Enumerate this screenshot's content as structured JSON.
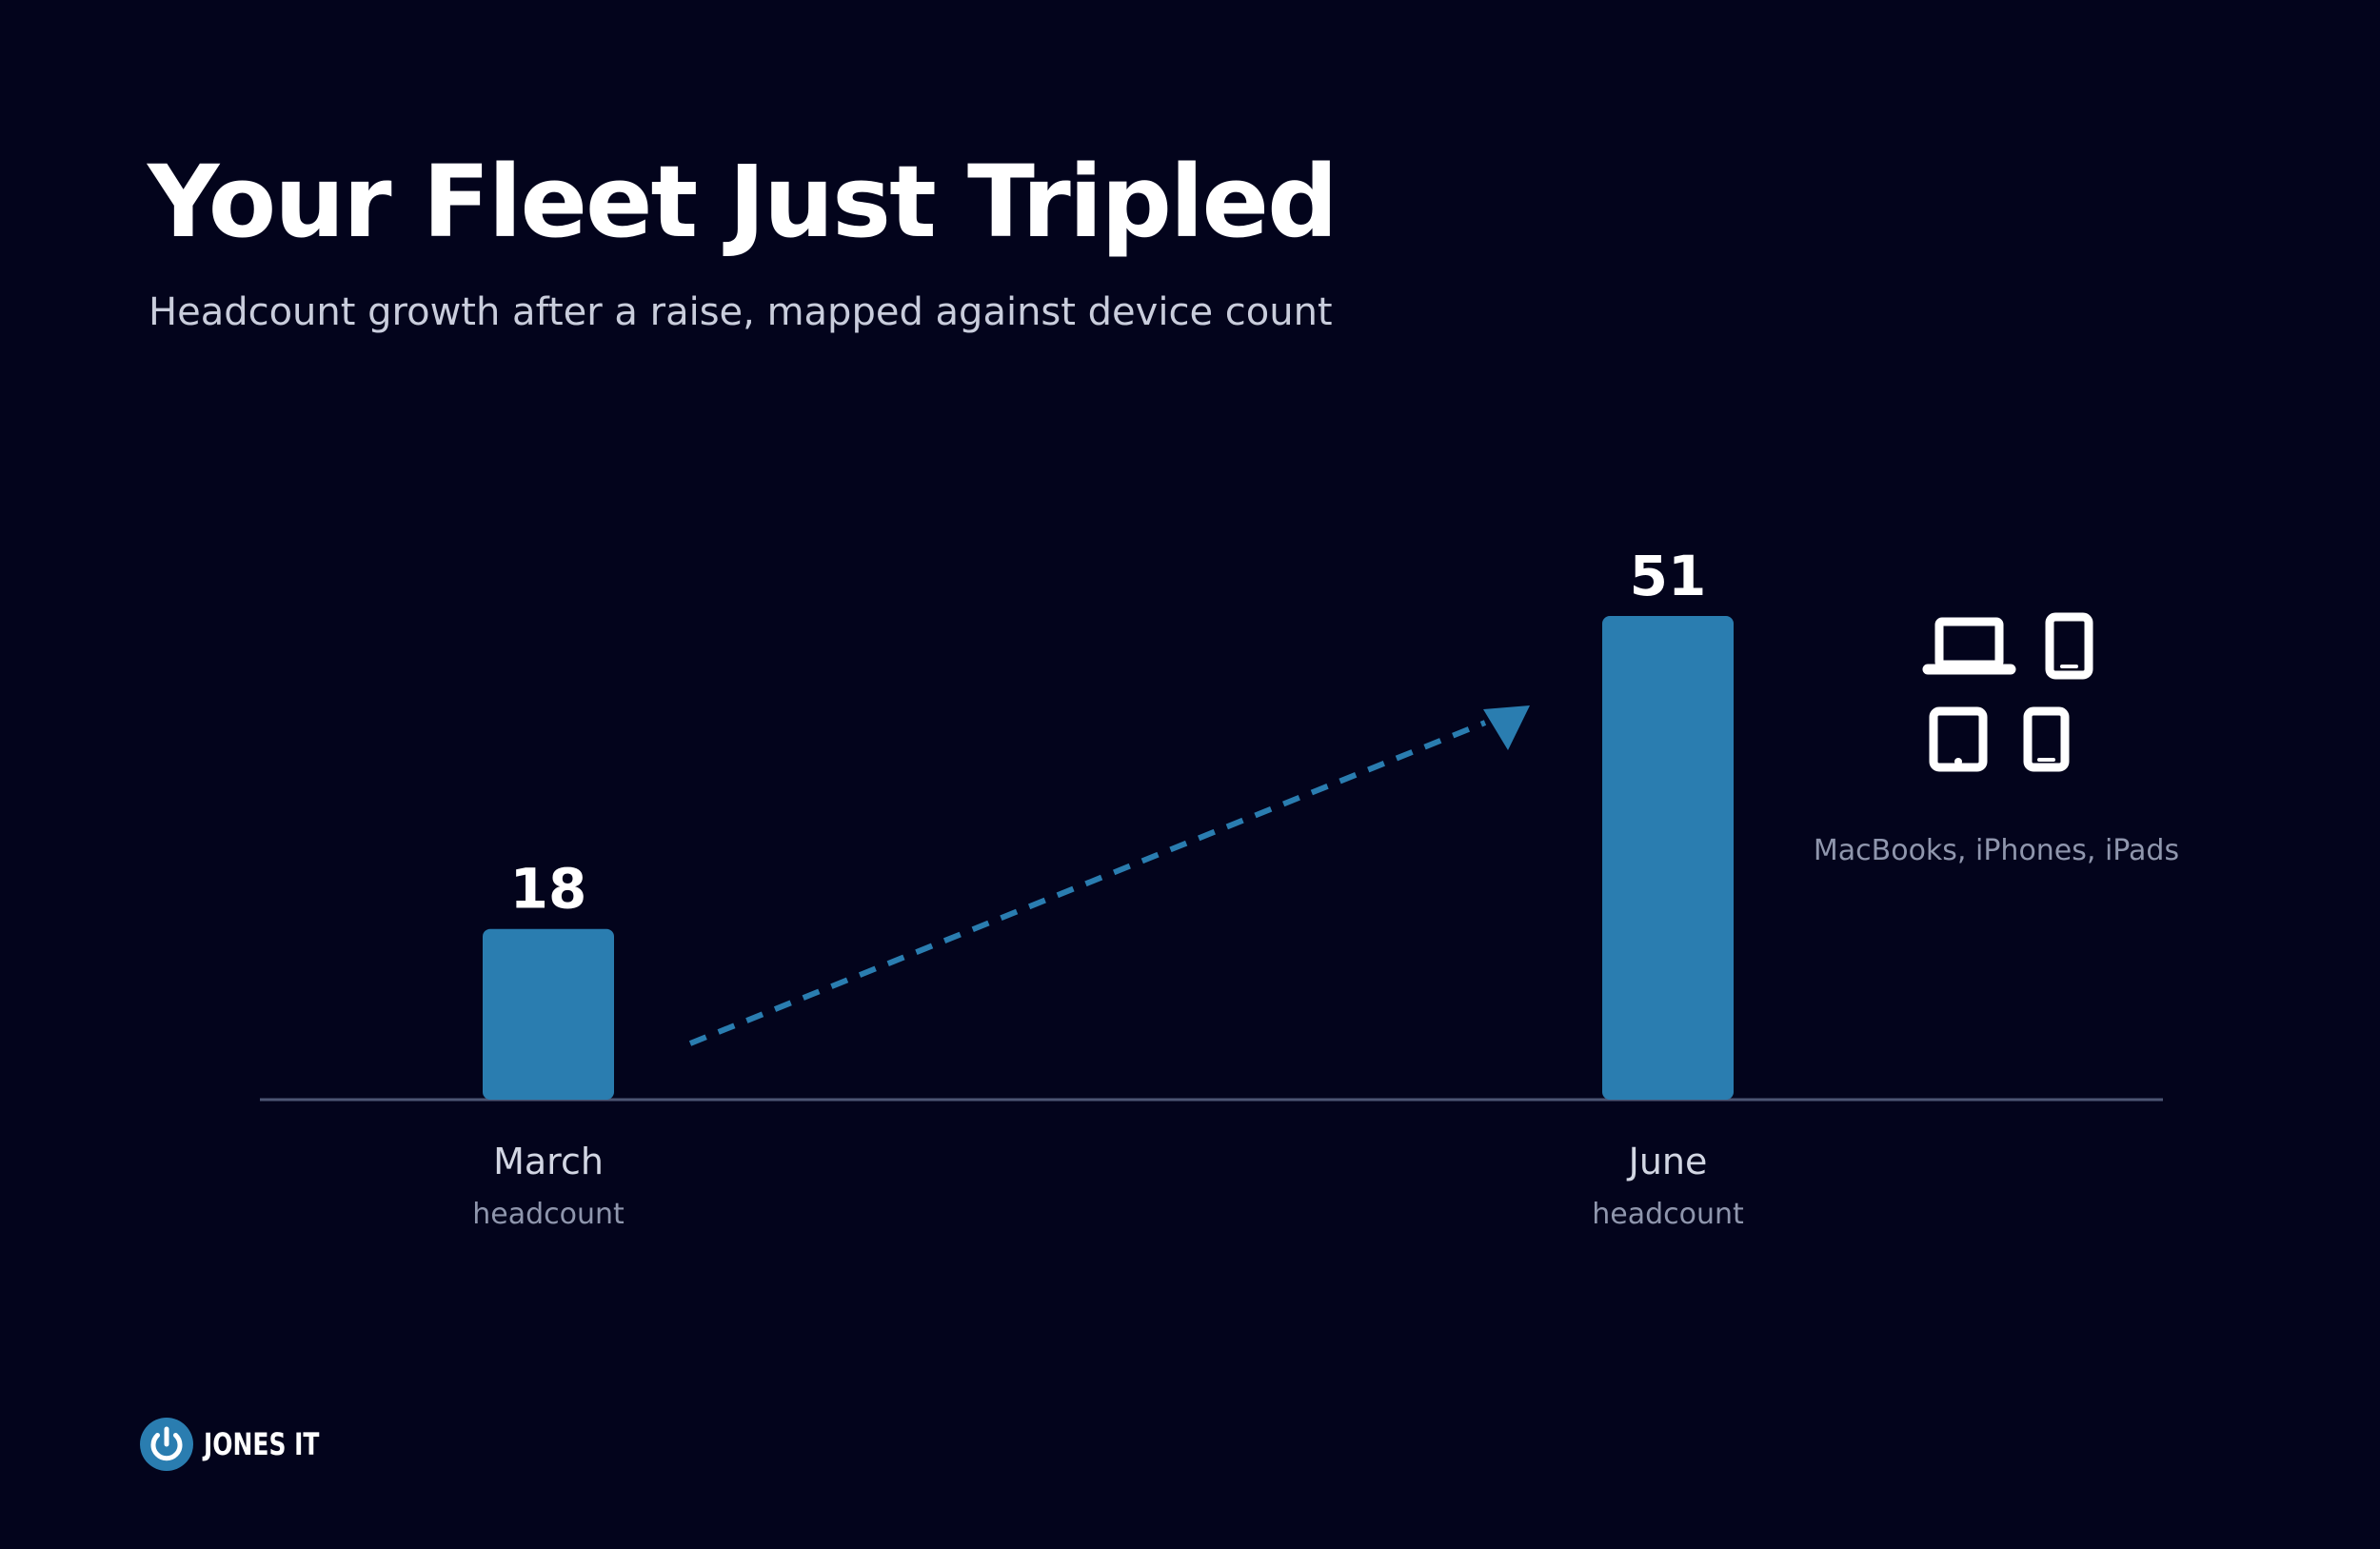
{
  "slide": {
    "title": "Your Fleet Just Tripled",
    "subtitle": "Headcount growth after a raise, mapped against device count"
  },
  "chart_data": {
    "type": "bar",
    "categories": [
      "March",
      "June"
    ],
    "category_sublabels": [
      "headcount",
      "headcount"
    ],
    "values": [
      18,
      51
    ],
    "data_labels": [
      "18",
      "51"
    ],
    "ylim": [
      0,
      51
    ],
    "grid": false,
    "bar_color": "#2a7db0",
    "annotation": {
      "type": "dashed-arrow",
      "from": "March",
      "to": "June",
      "color": "#2a7db0"
    },
    "devices_panel": {
      "icons": [
        "laptop-icon",
        "smartphone-icon",
        "tablet-icon",
        "smartphone-icon"
      ],
      "caption": "MacBooks, iPhones, iPads"
    }
  },
  "logo": {
    "text": "JONES IT",
    "icon": "power-icon",
    "color": "#2a7db0"
  }
}
